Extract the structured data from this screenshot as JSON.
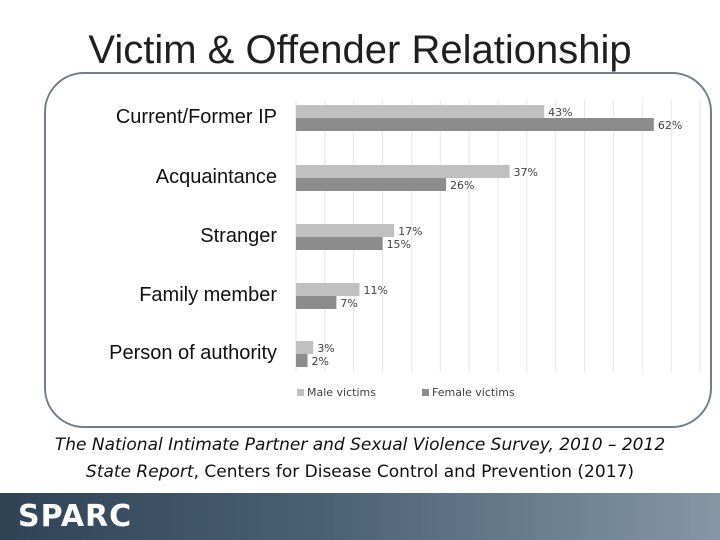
{
  "slide": {
    "title": "Victim & Offender Relationship",
    "citation_italic_1": "The National Intimate Partner and Sexual Violence Survey, 2010 – 2012",
    "citation_italic_2": "State Report",
    "citation_rest": ", Centers for Disease Control and Prevention (2017)",
    "footer_logo": "SPARC"
  },
  "colors": {
    "male": "#c0c0c0",
    "female": "#8c8c8c",
    "gridline": "#e6e6e6",
    "frame": "#6f7f8f"
  },
  "chart_data": {
    "type": "bar",
    "orientation": "horizontal",
    "categories": [
      "Current/Former IP",
      "Acquaintance",
      "Stranger",
      "Family member",
      "Person of authority"
    ],
    "series": [
      {
        "name": "Male victims",
        "values": [
          43,
          37,
          17,
          11,
          3
        ]
      },
      {
        "name": "Female victims",
        "values": [
          62,
          26,
          15,
          7,
          2
        ]
      }
    ],
    "value_labels": {
      "male": [
        "43%",
        "37%",
        "17%",
        "11%",
        "3%"
      ],
      "female": [
        "62%",
        "26%",
        "15%",
        "7%",
        "2%"
      ]
    },
    "xlim": [
      0,
      70
    ],
    "grid": true,
    "legend_position": "bottom"
  }
}
